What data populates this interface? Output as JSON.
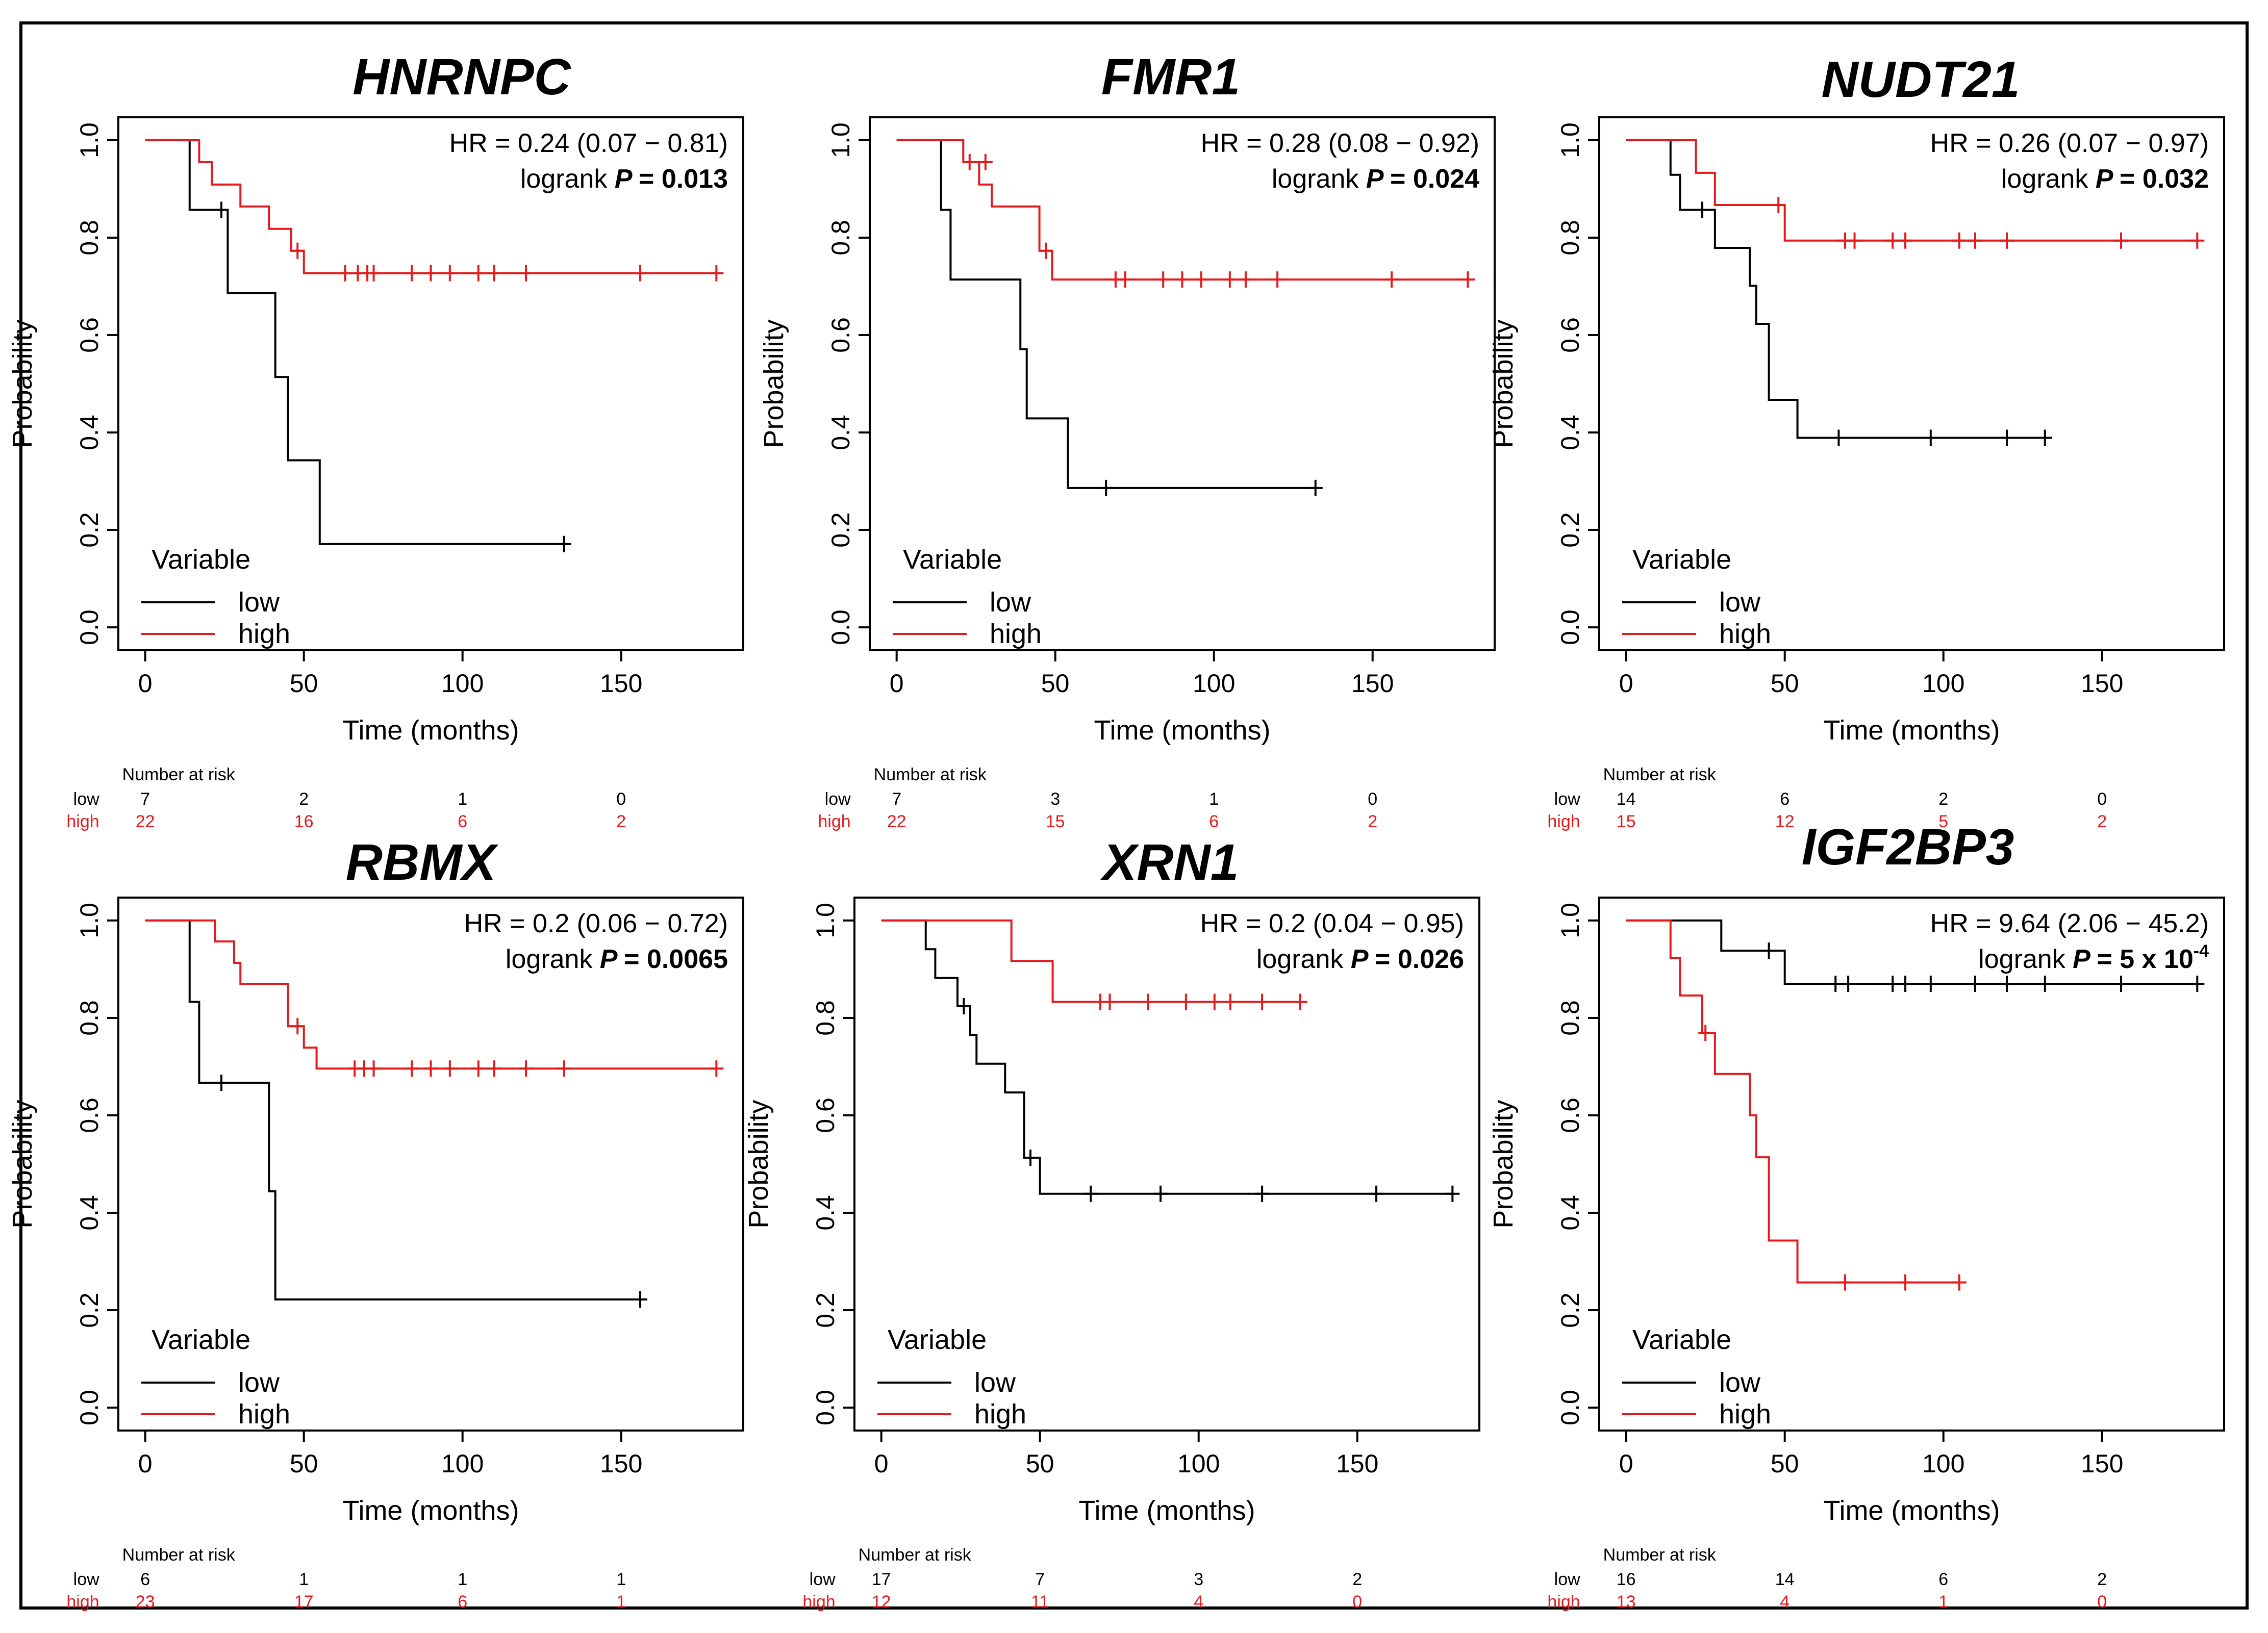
{
  "axis_labels": {
    "x": "Time (months)",
    "y": "Probability",
    "risk_header": "Number at risk"
  },
  "legend": {
    "title": "Variable",
    "low": "low",
    "high": "high"
  },
  "colors": {
    "low": "#000000",
    "high": "#e41a1c"
  },
  "chart_data": [
    {
      "type": "line",
      "title": "HNRNPC",
      "hr_text": "HR = 0.24 (0.07 − 0.81)",
      "logrank_label": "logrank",
      "p_label": "P",
      "p_value": "= 0.013",
      "xlim": [
        0,
        180
      ],
      "ylim": [
        0,
        1
      ],
      "x_ticks": [
        0,
        50,
        100,
        150
      ],
      "y_ticks": [
        "0.0",
        "0.2",
        "0.4",
        "0.6",
        "0.8",
        "1.0"
      ],
      "series": [
        {
          "name": "low",
          "steps": [
            [
              0,
              1.0
            ],
            [
              14,
              0.857
            ],
            [
              26,
              0.686
            ],
            [
              41,
              0.514
            ],
            [
              45,
              0.343
            ],
            [
              55,
              0.171
            ],
            [
              132,
              0.171
            ]
          ],
          "censors": [
            [
              24,
              0.857
            ],
            [
              132,
              0.171
            ]
          ]
        },
        {
          "name": "high",
          "steps": [
            [
              0,
              1.0
            ],
            [
              17,
              0.955
            ],
            [
              21,
              0.909
            ],
            [
              30,
              0.864
            ],
            [
              39,
              0.818
            ],
            [
              46,
              0.773
            ],
            [
              50,
              0.727
            ],
            [
              180,
              0.727
            ]
          ],
          "censors": [
            [
              48,
              0.773
            ],
            [
              63,
              0.727
            ],
            [
              67,
              0.727
            ],
            [
              70,
              0.727
            ],
            [
              72,
              0.727
            ],
            [
              84,
              0.727
            ],
            [
              90,
              0.727
            ],
            [
              96,
              0.727
            ],
            [
              105,
              0.727
            ],
            [
              110,
              0.727
            ],
            [
              120,
              0.727
            ],
            [
              156,
              0.727
            ],
            [
              180,
              0.727
            ]
          ]
        }
      ],
      "risk_times": [
        0,
        50,
        100,
        150
      ],
      "risk_low": [
        "7",
        "2",
        "1",
        "0"
      ],
      "risk_high": [
        "22",
        "16",
        "6",
        "2"
      ]
    },
    {
      "type": "line",
      "title": "FMR1",
      "hr_text": "HR = 0.28 (0.08 − 0.92)",
      "logrank_label": "logrank",
      "p_label": "P",
      "p_value": "= 0.024",
      "xlim": [
        0,
        180
      ],
      "ylim": [
        0,
        1
      ],
      "x_ticks": [
        0,
        50,
        100,
        150
      ],
      "y_ticks": [
        "0.0",
        "0.2",
        "0.4",
        "0.6",
        "0.8",
        "1.0"
      ],
      "series": [
        {
          "name": "low",
          "steps": [
            [
              0,
              1.0
            ],
            [
              14,
              0.857
            ],
            [
              17,
              0.714
            ],
            [
              39,
              0.571
            ],
            [
              41,
              0.429
            ],
            [
              54,
              0.286
            ],
            [
              132,
              0.286
            ]
          ],
          "censors": [
            [
              66,
              0.286
            ],
            [
              132,
              0.286
            ]
          ]
        },
        {
          "name": "high",
          "steps": [
            [
              0,
              1.0
            ],
            [
              21,
              0.955
            ],
            [
              26,
              0.909
            ],
            [
              30,
              0.864
            ],
            [
              45,
              0.773
            ],
            [
              49,
              0.714
            ],
            [
              180,
              0.714
            ]
          ],
          "censors": [
            [
              23,
              0.955
            ],
            [
              28,
              0.955
            ],
            [
              47,
              0.773
            ],
            [
              69,
              0.714
            ],
            [
              72,
              0.714
            ],
            [
              84,
              0.714
            ],
            [
              90,
              0.714
            ],
            [
              96,
              0.714
            ],
            [
              105,
              0.714
            ],
            [
              110,
              0.714
            ],
            [
              120,
              0.714
            ],
            [
              156,
              0.714
            ],
            [
              180,
              0.714
            ]
          ]
        }
      ],
      "risk_times": [
        0,
        50,
        100,
        150
      ],
      "risk_low": [
        "7",
        "3",
        "1",
        "0"
      ],
      "risk_high": [
        "22",
        "15",
        "6",
        "2"
      ]
    },
    {
      "type": "line",
      "title": "NUDT21",
      "hr_text": "HR = 0.26 (0.07 − 0.97)",
      "logrank_label": "logrank",
      "p_label": "P",
      "p_value": "= 0.032",
      "xlim": [
        0,
        180
      ],
      "ylim": [
        0,
        1
      ],
      "x_ticks": [
        0,
        50,
        100,
        150
      ],
      "y_ticks": [
        "0.0",
        "0.2",
        "0.4",
        "0.6",
        "0.8",
        "1.0"
      ],
      "series": [
        {
          "name": "low",
          "steps": [
            [
              0,
              1.0
            ],
            [
              14,
              0.929
            ],
            [
              17,
              0.857
            ],
            [
              28,
              0.779
            ],
            [
              39,
              0.701
            ],
            [
              41,
              0.623
            ],
            [
              45,
              0.467
            ],
            [
              54,
              0.389
            ],
            [
              132,
              0.389
            ]
          ],
          "censors": [
            [
              24,
              0.857
            ],
            [
              67,
              0.389
            ],
            [
              96,
              0.389
            ],
            [
              120,
              0.389
            ],
            [
              132,
              0.389
            ]
          ]
        },
        {
          "name": "high",
          "steps": [
            [
              0,
              1.0
            ],
            [
              22,
              0.933
            ],
            [
              28,
              0.867
            ],
            [
              50,
              0.794
            ],
            [
              180,
              0.794
            ]
          ],
          "censors": [
            [
              48,
              0.867
            ],
            [
              69,
              0.794
            ],
            [
              72,
              0.794
            ],
            [
              84,
              0.794
            ],
            [
              88,
              0.794
            ],
            [
              105,
              0.794
            ],
            [
              110,
              0.794
            ],
            [
              120,
              0.794
            ],
            [
              156,
              0.794
            ],
            [
              180,
              0.794
            ]
          ]
        }
      ],
      "risk_times": [
        0,
        50,
        100,
        150
      ],
      "risk_low": [
        "14",
        "6",
        "2",
        "0"
      ],
      "risk_high": [
        "15",
        "12",
        "5",
        "2"
      ]
    },
    {
      "type": "line",
      "title": "RBMX",
      "hr_text": "HR = 0.2 (0.06 − 0.72)",
      "logrank_label": "logrank",
      "p_label": "P",
      "p_value": "= 0.0065",
      "xlim": [
        0,
        180
      ],
      "ylim": [
        0,
        1
      ],
      "x_ticks": [
        0,
        50,
        100,
        150
      ],
      "y_ticks": [
        "0.0",
        "0.2",
        "0.4",
        "0.6",
        "0.8",
        "1.0"
      ],
      "series": [
        {
          "name": "low",
          "steps": [
            [
              0,
              1.0
            ],
            [
              14,
              0.833
            ],
            [
              17,
              0.667
            ],
            [
              39,
              0.444
            ],
            [
              41,
              0.222
            ],
            [
              156,
              0.222
            ]
          ],
          "censors": [
            [
              24,
              0.667
            ],
            [
              156,
              0.222
            ]
          ]
        },
        {
          "name": "high",
          "steps": [
            [
              0,
              1.0
            ],
            [
              22,
              0.957
            ],
            [
              28,
              0.913
            ],
            [
              30,
              0.87
            ],
            [
              45,
              0.783
            ],
            [
              50,
              0.739
            ],
            [
              54,
              0.696
            ],
            [
              180,
              0.696
            ]
          ],
          "censors": [
            [
              48,
              0.783
            ],
            [
              66,
              0.696
            ],
            [
              69,
              0.696
            ],
            [
              72,
              0.696
            ],
            [
              84,
              0.696
            ],
            [
              90,
              0.696
            ],
            [
              96,
              0.696
            ],
            [
              105,
              0.696
            ],
            [
              110,
              0.696
            ],
            [
              120,
              0.696
            ],
            [
              132,
              0.696
            ],
            [
              180,
              0.696
            ]
          ]
        }
      ],
      "risk_times": [
        0,
        50,
        100,
        150
      ],
      "risk_low": [
        "6",
        "1",
        "1",
        "1"
      ],
      "risk_high": [
        "23",
        "17",
        "6",
        "1"
      ]
    },
    {
      "type": "line",
      "title": "XRN1",
      "hr_text": "HR = 0.2 (0.04 − 0.95)",
      "logrank_label": "logrank",
      "p_label": "P",
      "p_value": "= 0.026",
      "xlim": [
        0,
        180
      ],
      "ylim": [
        0,
        1
      ],
      "x_ticks": [
        0,
        50,
        100,
        150
      ],
      "y_ticks": [
        "0.0",
        "0.2",
        "0.4",
        "0.6",
        "0.8",
        "1.0"
      ],
      "series": [
        {
          "name": "low",
          "steps": [
            [
              0,
              1.0
            ],
            [
              14,
              0.941
            ],
            [
              17,
              0.882
            ],
            [
              24,
              0.824
            ],
            [
              28,
              0.765
            ],
            [
              30,
              0.706
            ],
            [
              39,
              0.647
            ],
            [
              45,
              0.513
            ],
            [
              50,
              0.439
            ],
            [
              180,
              0.439
            ]
          ],
          "censors": [
            [
              26,
              0.824
            ],
            [
              47,
              0.513
            ],
            [
              66,
              0.439
            ],
            [
              88,
              0.439
            ],
            [
              120,
              0.439
            ],
            [
              156,
              0.439
            ],
            [
              180,
              0.439
            ]
          ]
        },
        {
          "name": "high",
          "steps": [
            [
              0,
              1.0
            ],
            [
              41,
              0.917
            ],
            [
              54,
              0.833
            ],
            [
              132,
              0.833
            ]
          ],
          "censors": [
            [
              69,
              0.833
            ],
            [
              72,
              0.833
            ],
            [
              84,
              0.833
            ],
            [
              96,
              0.833
            ],
            [
              105,
              0.833
            ],
            [
              110,
              0.833
            ],
            [
              120,
              0.833
            ],
            [
              132,
              0.833
            ]
          ]
        }
      ],
      "risk_times": [
        0,
        50,
        100,
        150
      ],
      "risk_low": [
        "17",
        "7",
        "3",
        "2"
      ],
      "risk_high": [
        "12",
        "11",
        "4",
        "0"
      ]
    },
    {
      "type": "line",
      "title": "IGF2BP3",
      "hr_text": "HR = 9.64 (2.06 − 45.2)",
      "logrank_label": "logrank",
      "p_label": "P",
      "p_value": "= 5 x 10",
      "p_exponent": "-4",
      "xlim": [
        0,
        180
      ],
      "ylim": [
        0,
        1
      ],
      "x_ticks": [
        0,
        50,
        100,
        150
      ],
      "y_ticks": [
        "0.0",
        "0.2",
        "0.4",
        "0.6",
        "0.8",
        "1.0"
      ],
      "series": [
        {
          "name": "low",
          "steps": [
            [
              0,
              1.0
            ],
            [
              30,
              0.938
            ],
            [
              50,
              0.87
            ],
            [
              180,
              0.87
            ]
          ],
          "censors": [
            [
              45,
              0.938
            ],
            [
              66,
              0.87
            ],
            [
              70,
              0.87
            ],
            [
              84,
              0.87
            ],
            [
              88,
              0.87
            ],
            [
              96,
              0.87
            ],
            [
              110,
              0.87
            ],
            [
              120,
              0.87
            ],
            [
              132,
              0.87
            ],
            [
              156,
              0.87
            ],
            [
              180,
              0.87
            ]
          ]
        },
        {
          "name": "high",
          "steps": [
            [
              0,
              1.0
            ],
            [
              14,
              0.923
            ],
            [
              17,
              0.846
            ],
            [
              24,
              0.769
            ],
            [
              26,
              0.769
            ],
            [
              28,
              0.685
            ],
            [
              39,
              0.6
            ],
            [
              41,
              0.514
            ],
            [
              45,
              0.343
            ],
            [
              54,
              0.257
            ],
            [
              105,
              0.257
            ]
          ],
          "censors": [
            [
              25,
              0.769
            ],
            [
              69,
              0.257
            ],
            [
              88,
              0.257
            ],
            [
              105,
              0.257
            ]
          ]
        }
      ],
      "risk_times": [
        0,
        50,
        100,
        150
      ],
      "risk_low": [
        "16",
        "14",
        "6",
        "2"
      ],
      "risk_high": [
        "13",
        "4",
        "1",
        "0"
      ]
    }
  ]
}
